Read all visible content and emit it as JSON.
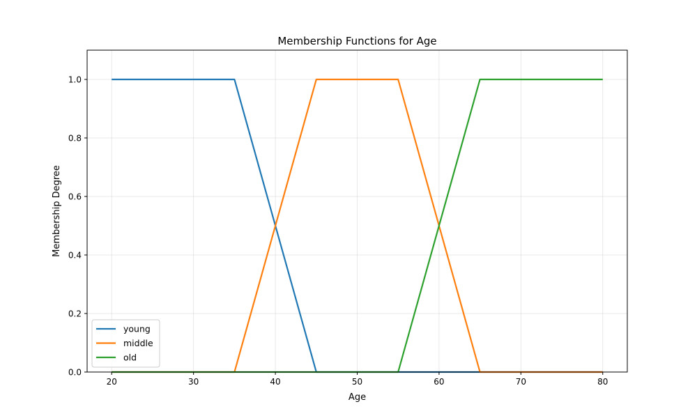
{
  "chart_data": {
    "type": "line",
    "title": "Membership Functions for Age",
    "xlabel": "Age",
    "ylabel": "Membership Degree",
    "xlim": [
      17.0,
      83.0
    ],
    "ylim": [
      0.0,
      1.1
    ],
    "xticks": [
      "20",
      "30",
      "40",
      "50",
      "60",
      "70",
      "80"
    ],
    "yticks": [
      "0.0",
      "0.2",
      "0.4",
      "0.6",
      "0.8",
      "1.0"
    ],
    "grid": true,
    "legend_position": "lower-left",
    "series": [
      {
        "name": "young",
        "color": "#1f77b4",
        "x": [
          20,
          35,
          45,
          80
        ],
        "y": [
          1,
          1,
          0,
          0
        ]
      },
      {
        "name": "middle",
        "color": "#ff7f0e",
        "x": [
          20,
          35,
          45,
          55,
          65,
          80
        ],
        "y": [
          0,
          0,
          1,
          1,
          0,
          0
        ]
      },
      {
        "name": "old",
        "color": "#2ca02c",
        "x": [
          20,
          55,
          65,
          80
        ],
        "y": [
          0,
          0,
          1,
          1
        ]
      }
    ]
  }
}
